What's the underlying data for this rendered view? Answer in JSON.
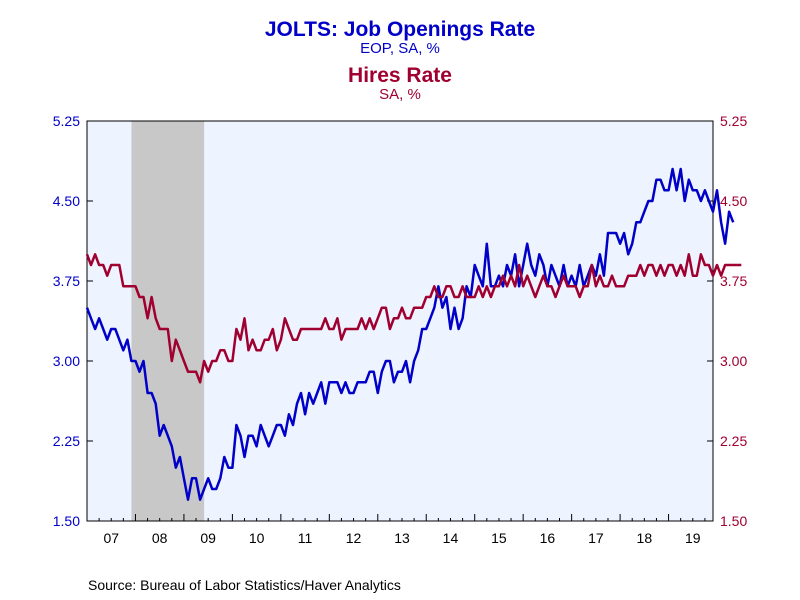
{
  "chart_data": {
    "type": "line",
    "title": "JOLTS: Job Openings Rate",
    "subtitle": "EOP, SA, %",
    "title2": "Hires Rate",
    "subtitle2": "SA, %",
    "source": "Source:  Bureau of Labor Statistics/Haver Analytics",
    "colors": {
      "openings": "#0000c8",
      "hires": "#a00030",
      "recession": "#c8c8c8",
      "plot_bg": "#eef4ff"
    },
    "x_range": [
      2007.0,
      2019.917
    ],
    "ylim": [
      1.5,
      5.25
    ],
    "y_ticks": [
      "5.25",
      "4.50",
      "3.75",
      "3.00",
      "2.25",
      "1.50"
    ],
    "x_tick_labels": [
      "07",
      "08",
      "09",
      "10",
      "11",
      "12",
      "13",
      "14",
      "15",
      "16",
      "17",
      "18",
      "19"
    ],
    "recession": [
      2007.917,
      2009.417
    ],
    "grid": false,
    "legend": "none",
    "series": [
      {
        "name": "JOLTS: Job Openings Rate",
        "axis": "left",
        "start": "2007-01",
        "values": [
          3.5,
          3.4,
          3.3,
          3.4,
          3.3,
          3.2,
          3.3,
          3.3,
          3.2,
          3.1,
          3.2,
          3.0,
          3.0,
          2.9,
          3.0,
          2.7,
          2.7,
          2.6,
          2.3,
          2.4,
          2.3,
          2.2,
          2.0,
          2.1,
          1.9,
          1.7,
          1.9,
          1.9,
          1.7,
          1.8,
          1.9,
          1.8,
          1.8,
          1.9,
          2.1,
          2.0,
          2.0,
          2.4,
          2.3,
          2.1,
          2.3,
          2.3,
          2.2,
          2.4,
          2.3,
          2.2,
          2.3,
          2.4,
          2.4,
          2.3,
          2.5,
          2.4,
          2.6,
          2.7,
          2.5,
          2.7,
          2.6,
          2.7,
          2.8,
          2.6,
          2.8,
          2.8,
          2.8,
          2.7,
          2.8,
          2.7,
          2.7,
          2.8,
          2.8,
          2.8,
          2.9,
          2.9,
          2.7,
          2.9,
          3.0,
          3.0,
          2.8,
          2.9,
          2.9,
          3.0,
          2.8,
          3.0,
          3.1,
          3.3,
          3.3,
          3.4,
          3.5,
          3.7,
          3.5,
          3.6,
          3.3,
          3.5,
          3.3,
          3.4,
          3.7,
          3.6,
          3.9,
          3.8,
          3.7,
          4.1,
          3.7,
          3.7,
          3.8,
          3.7,
          3.9,
          3.8,
          4.0,
          3.7,
          3.9,
          4.1,
          3.9,
          3.8,
          4.0,
          3.9,
          3.7,
          3.9,
          3.8,
          3.7,
          3.9,
          3.7,
          3.8,
          3.7,
          3.9,
          3.7,
          3.8,
          3.9,
          3.8,
          4.0,
          3.8,
          4.2,
          4.2,
          4.2,
          4.1,
          4.2,
          4.0,
          4.1,
          4.3,
          4.3,
          4.4,
          4.5,
          4.5,
          4.7,
          4.7,
          4.6,
          4.6,
          4.8,
          4.6,
          4.8,
          4.5,
          4.7,
          4.6,
          4.6,
          4.5,
          4.6,
          4.5,
          4.4,
          4.6,
          4.3,
          4.1,
          4.4,
          4.3
        ]
      },
      {
        "name": "Hires Rate",
        "axis": "right",
        "start": "2007-01",
        "values": [
          4.0,
          3.9,
          4.0,
          3.9,
          3.9,
          3.8,
          3.9,
          3.9,
          3.9,
          3.7,
          3.7,
          3.7,
          3.7,
          3.6,
          3.6,
          3.4,
          3.6,
          3.4,
          3.3,
          3.3,
          3.3,
          3.0,
          3.2,
          3.1,
          3.0,
          2.9,
          2.9,
          2.9,
          2.8,
          3.0,
          2.9,
          3.0,
          3.0,
          3.1,
          3.1,
          3.0,
          3.0,
          3.3,
          3.2,
          3.4,
          3.1,
          3.2,
          3.1,
          3.1,
          3.2,
          3.2,
          3.3,
          3.1,
          3.2,
          3.4,
          3.3,
          3.2,
          3.2,
          3.3,
          3.3,
          3.3,
          3.3,
          3.3,
          3.3,
          3.4,
          3.3,
          3.3,
          3.4,
          3.2,
          3.3,
          3.3,
          3.3,
          3.3,
          3.4,
          3.3,
          3.4,
          3.3,
          3.4,
          3.5,
          3.5,
          3.3,
          3.4,
          3.4,
          3.5,
          3.4,
          3.4,
          3.5,
          3.5,
          3.5,
          3.6,
          3.6,
          3.7,
          3.6,
          3.6,
          3.7,
          3.7,
          3.6,
          3.6,
          3.7,
          3.6,
          3.6,
          3.6,
          3.7,
          3.6,
          3.7,
          3.6,
          3.7,
          3.7,
          3.8,
          3.7,
          3.8,
          3.7,
          3.9,
          3.7,
          3.8,
          3.7,
          3.6,
          3.7,
          3.8,
          3.7,
          3.7,
          3.6,
          3.7,
          3.8,
          3.7,
          3.7,
          3.7,
          3.6,
          3.7,
          3.7,
          3.9,
          3.7,
          3.8,
          3.7,
          3.7,
          3.8,
          3.7,
          3.7,
          3.7,
          3.8,
          3.8,
          3.8,
          3.9,
          3.8,
          3.9,
          3.9,
          3.8,
          3.9,
          3.8,
          3.9,
          3.9,
          3.8,
          3.9,
          3.8,
          4.0,
          3.8,
          3.8,
          4.0,
          3.9,
          3.9,
          3.8,
          3.9,
          3.8,
          3.9,
          3.9,
          3.9,
          3.9,
          3.9
        ]
      }
    ]
  }
}
